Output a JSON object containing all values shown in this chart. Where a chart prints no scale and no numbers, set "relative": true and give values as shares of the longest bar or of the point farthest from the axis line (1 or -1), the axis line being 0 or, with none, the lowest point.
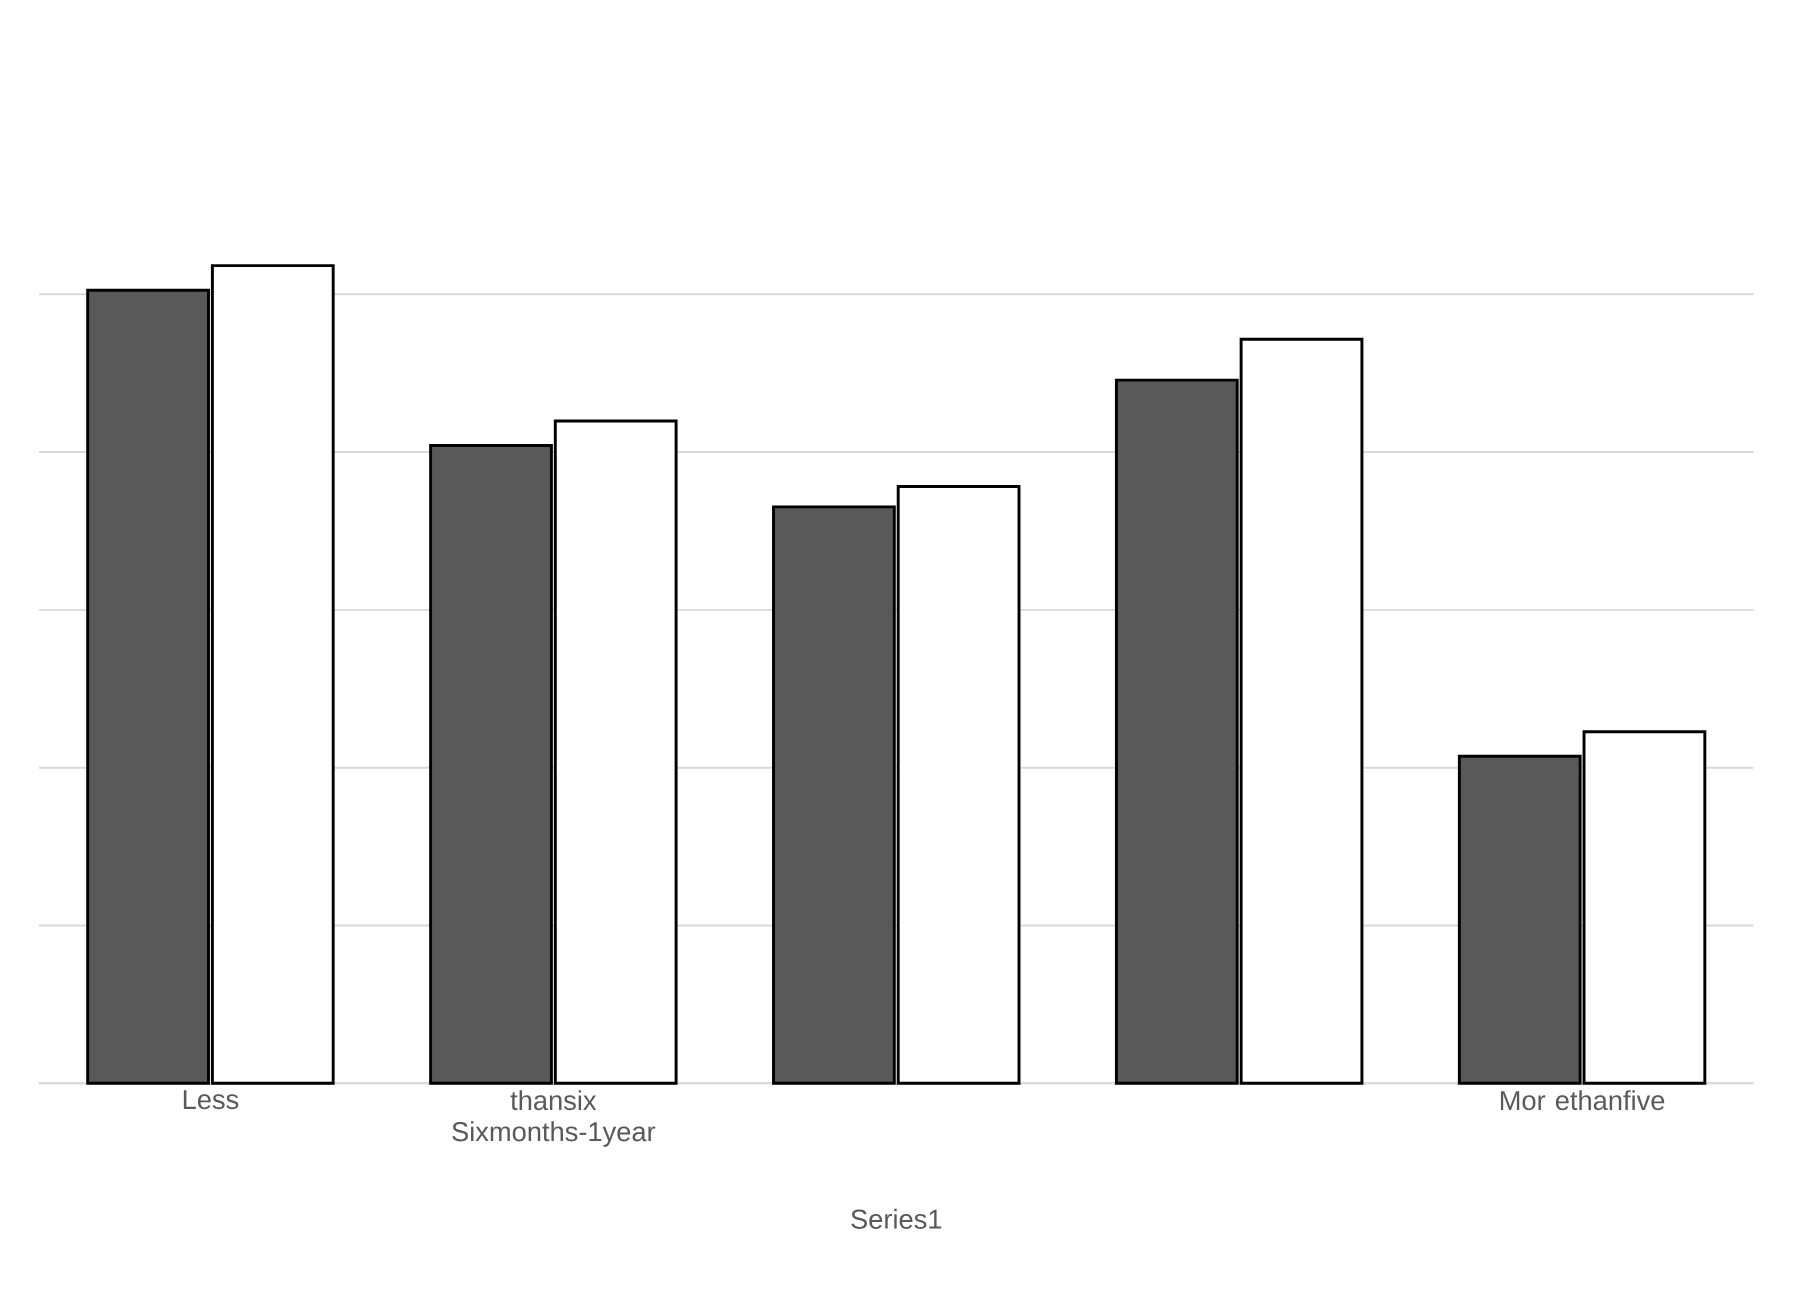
{
  "chart_data": {
    "type": "bar",
    "relative": true,
    "xlabel": "Series1",
    "grid": "y",
    "categories": [
      "Less",
      "thansix Sixmonths-1year",
      null,
      null,
      "Mor ethanfive"
    ],
    "series": [
      {
        "color": "#595959",
        "values": [
          0.97,
          0.78,
          0.705,
          0.86,
          0.4
        ]
      },
      {
        "color": "#ffffff",
        "values": [
          1,
          0.81,
          0.73,
          0.91,
          0.43
        ]
      }
    ]
  }
}
